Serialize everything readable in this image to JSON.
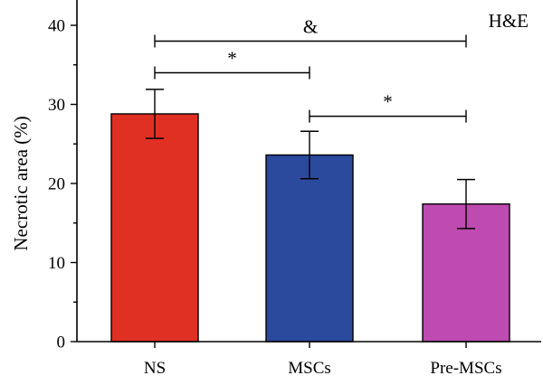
{
  "chart_data": {
    "type": "bar",
    "categories": [
      "NS",
      "MSCs",
      "Pre-MSCs"
    ],
    "values": [
      28.8,
      23.6,
      17.4
    ],
    "errors": [
      3.1,
      3.0,
      3.1
    ],
    "colors": [
      "#e03023",
      "#2b4a9e",
      "#be4bb0"
    ],
    "ylabel": "Necrotic area (%)",
    "xlabel": "",
    "ylim": [
      0,
      43
    ],
    "yticks": [
      0,
      10,
      20,
      30,
      40
    ],
    "ytick_labels": [
      "0",
      "10",
      "20",
      "30",
      "40"
    ],
    "annotations": [
      {
        "from": 0,
        "to": 2,
        "y": 38,
        "label": "&"
      },
      {
        "from": 0,
        "to": 1,
        "y": 34,
        "label": "*"
      },
      {
        "from": 1,
        "to": 2,
        "y": 28.5,
        "label": "*"
      }
    ],
    "corner_label": "H&E",
    "grid": false,
    "legend": "none"
  }
}
